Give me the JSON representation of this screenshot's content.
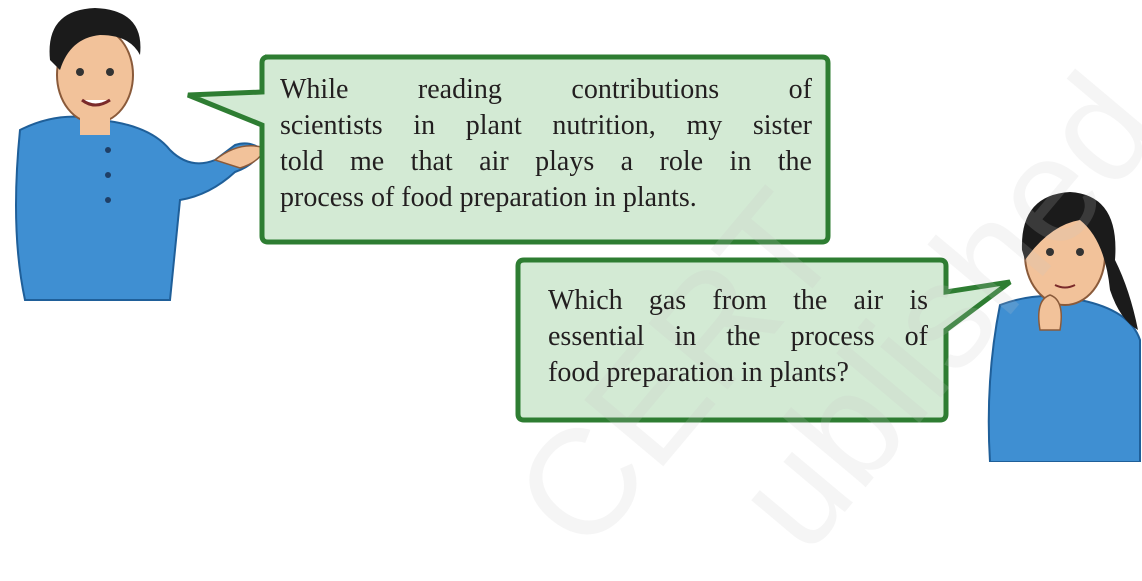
{
  "bubbles": [
    {
      "lines": [
        "While reading contributions of",
        "scientists in plant nutrition, my sister",
        "told me that air plays a role in the",
        "process of food preparation in plants."
      ]
    },
    {
      "lines": [
        "Which gas from the air is",
        "essential in the process of",
        "food preparation in plants?"
      ]
    }
  ],
  "watermark": [
    "CERT",
    "ublished"
  ]
}
